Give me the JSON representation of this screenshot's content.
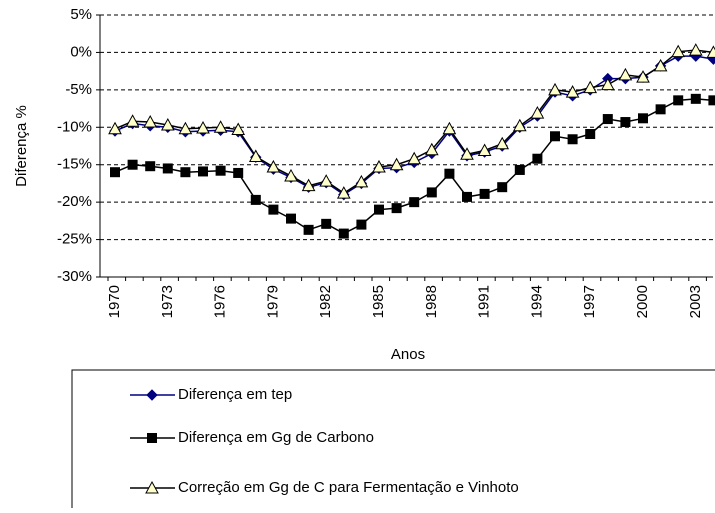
{
  "chart_data": {
    "type": "line",
    "x_label": "Anos",
    "y_label": "Diferença %",
    "categories": [
      "1970",
      null,
      null,
      "1973",
      null,
      null,
      "1976",
      null,
      null,
      "1979",
      null,
      null,
      "1982",
      null,
      null,
      "1985",
      null,
      null,
      "1988",
      null,
      null,
      "1991",
      null,
      null,
      "1994",
      null,
      null,
      "1997",
      null,
      null,
      "2000",
      null,
      null,
      "2003",
      null
    ],
    "series": [
      {
        "name": "Diferença em tep",
        "color": "#000080",
        "marker": "diamond",
        "values": [
          -10.5,
          -9.5,
          -9.8,
          -10,
          -10.6,
          -10.5,
          -10.4,
          -10.6,
          -14,
          -15.6,
          -16.7,
          -18,
          -17.4,
          -19,
          -17.5,
          -15.5,
          -15.4,
          -14.7,
          -13.5,
          -10.5,
          -13.8,
          -13.3,
          -12.5,
          -10,
          -8.5,
          -5.3,
          -5.8,
          -5,
          -3.5,
          -3.5,
          -3.3,
          -1.8,
          -0.5,
          -0.5,
          -0.9
        ]
      },
      {
        "name": "Diferença em Gg de Carbono",
        "color": "#000000",
        "marker": "square",
        "values": [
          -16,
          -15,
          -15.2,
          -15.5,
          -16,
          -15.9,
          -15.8,
          -16.1,
          -19.7,
          -21,
          -22.2,
          -23.7,
          -22.9,
          -24.2,
          -23,
          -21,
          -20.8,
          -20,
          -18.7,
          -16.2,
          -19.3,
          -18.9,
          -18,
          -15.7,
          -14.2,
          -11.2,
          -11.6,
          -10.9,
          -8.9,
          -9.3,
          -8.8,
          -7.6,
          -6.4,
          -6.2,
          -6.4
        ]
      },
      {
        "name": "Correção em Gg de C para Fermentação e Vinhoto",
        "color": "#000000",
        "marker": "triangle",
        "values": [
          -10.2,
          -9.2,
          -9.3,
          -9.7,
          -10.2,
          -10.1,
          -10,
          -10.3,
          -13.9,
          -15.3,
          -16.5,
          -17.8,
          -17.2,
          -18.8,
          -17.3,
          -15.3,
          -15,
          -14.2,
          -13,
          -10.2,
          -13.6,
          -13.1,
          -12.2,
          -9.8,
          -8.1,
          -5,
          -5.3,
          -4.7,
          -4.3,
          -3,
          -3.3,
          -1.8,
          0.1,
          0.3,
          0
        ]
      }
    ],
    "ylim": [
      -30,
      5
    ],
    "yticks": [
      {
        "value": -30,
        "label": "-30%"
      },
      {
        "value": -25,
        "label": "-25%"
      },
      {
        "value": -20,
        "label": "-20%"
      },
      {
        "value": -15,
        "label": "-15%"
      },
      {
        "value": -10,
        "label": "-10%"
      },
      {
        "value": -5,
        "label": "-5%"
      },
      {
        "value": 0,
        "label": "0%"
      },
      {
        "value": 5,
        "label": "5%"
      }
    ],
    "grid": true
  }
}
